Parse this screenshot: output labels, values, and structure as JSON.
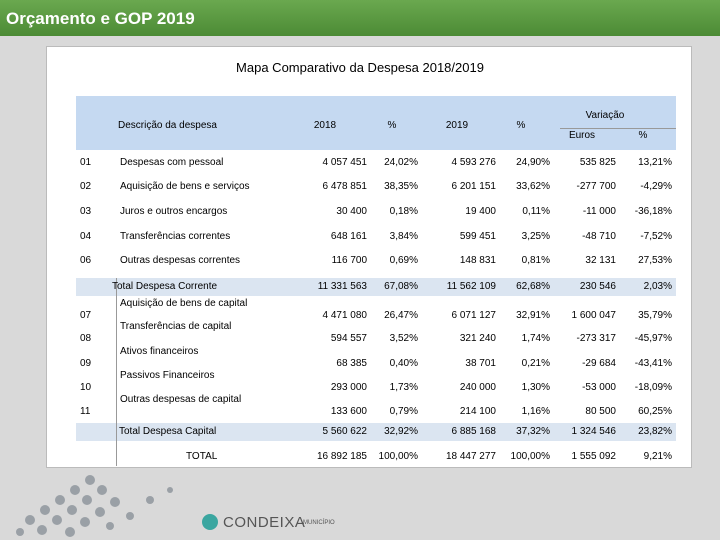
{
  "header": {
    "title": "Orçamento e GOP 2019"
  },
  "subtitle": "Mapa Comparativo da Despesa 2018/2019",
  "table": {
    "columns": {
      "description": "Descrição da despesa",
      "y2018": "2018",
      "pct2018": "%",
      "y2019": "2019",
      "pct2019": "%",
      "variation": "Variação",
      "euros": "Euros",
      "pct": "%"
    },
    "rows": [
      {
        "code": "01",
        "label": "Despesas com pessoal",
        "cells": [
          "4 057 451",
          "24,02%",
          "4 593 276",
          "24,90%",
          "535 825",
          "13,21%"
        ]
      },
      {
        "code": "02",
        "label": "Aquisição de bens e serviços",
        "cells": [
          "6 478 851",
          "38,35%",
          "6 201 151",
          "33,62%",
          "-277 700",
          "-4,29%"
        ]
      },
      {
        "code": "03",
        "label": "Juros e outros encargos",
        "cells": [
          "30 400",
          "0,18%",
          "19 400",
          "0,11%",
          "-11 000",
          "-36,18%"
        ]
      },
      {
        "code": "04",
        "label": "Transferências correntes",
        "cells": [
          "648 161",
          "3,84%",
          "599 451",
          "3,25%",
          "-48 710",
          "-7,52%"
        ]
      },
      {
        "code": "06",
        "label": "Outras despesas correntes",
        "cells": [
          "116 700",
          "0,69%",
          "148 831",
          "0,81%",
          "32 131",
          "27,53%"
        ]
      },
      {
        "label": "Total Despesa Corrente",
        "cells": [
          "11 331 563",
          "67,08%",
          "11 562 109",
          "62,68%",
          "230 546",
          "2,03%"
        ]
      },
      {
        "code": "07",
        "label": "Aquisição de bens de capital",
        "cells": [
          "4 471 080",
          "26,47%",
          "6 071 127",
          "32,91%",
          "1 600 047",
          "35,79%"
        ]
      },
      {
        "code": "08",
        "label": "Transferências de capital",
        "cells": [
          "594 557",
          "3,52%",
          "321 240",
          "1,74%",
          "-273 317",
          "-45,97%"
        ]
      },
      {
        "code": "09",
        "label": "Ativos financeiros",
        "cells": [
          "68 385",
          "0,40%",
          "38 701",
          "0,21%",
          "-29 684",
          "-43,41%"
        ]
      },
      {
        "code": "10",
        "label": "Passivos Financeiros",
        "cells": [
          "293 000",
          "1,73%",
          "240 000",
          "1,30%",
          "-53 000",
          "-18,09%"
        ]
      },
      {
        "code": "11",
        "label": "Outras despesas de capital",
        "cells": [
          "133 600",
          "0,79%",
          "214 100",
          "1,16%",
          "80 500",
          "60,25%"
        ]
      },
      {
        "label": "Total Despesa Capital",
        "cells": [
          "5 560 622",
          "32,92%",
          "6 885 168",
          "37,32%",
          "1 324 546",
          "23,82%"
        ]
      },
      {
        "label": "TOTAL",
        "cells": [
          "16 892 185",
          "100,00%",
          "18 447 277",
          "100,00%",
          "1 555 092",
          "9,21%"
        ]
      }
    ]
  },
  "logo": {
    "name": "CONDEIXA",
    "subtitle": "MUNICÍPIO"
  }
}
